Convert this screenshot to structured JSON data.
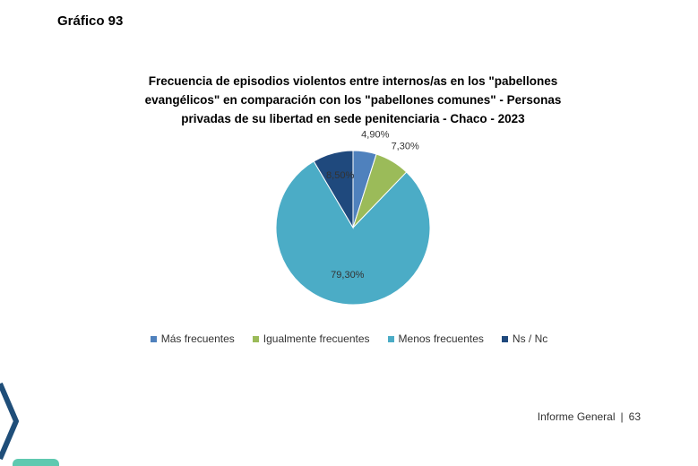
{
  "figure_label": "Gráfico 93",
  "chart_data": {
    "type": "pie",
    "title_lines": [
      "Frecuencia de episodios violentos entre internos/as en los \"pabellones",
      "evangélicos\" en comparación con los \"pabellones comunes\" - Personas",
      "privadas de su libertad en sede penitenciaria - Chaco - 2023"
    ],
    "categories": [
      "Más frecuentes",
      "Igualmente frecuentes",
      "Menos frecuentes",
      "Ns / Nc"
    ],
    "values": [
      4.9,
      7.3,
      79.3,
      8.5
    ],
    "labels": [
      "4,90%",
      "7,30%",
      "79,30%",
      "8,50%"
    ],
    "colors": [
      "#4f81bd",
      "#9bbb59",
      "#4bacc6",
      "#1f497d"
    ],
    "legend_position": "bottom"
  },
  "footer": {
    "text": "Informe General",
    "page": "63"
  },
  "decoration_colors": {
    "chevron": "#1f4e79",
    "corner_tab": "#5fc9b0"
  }
}
